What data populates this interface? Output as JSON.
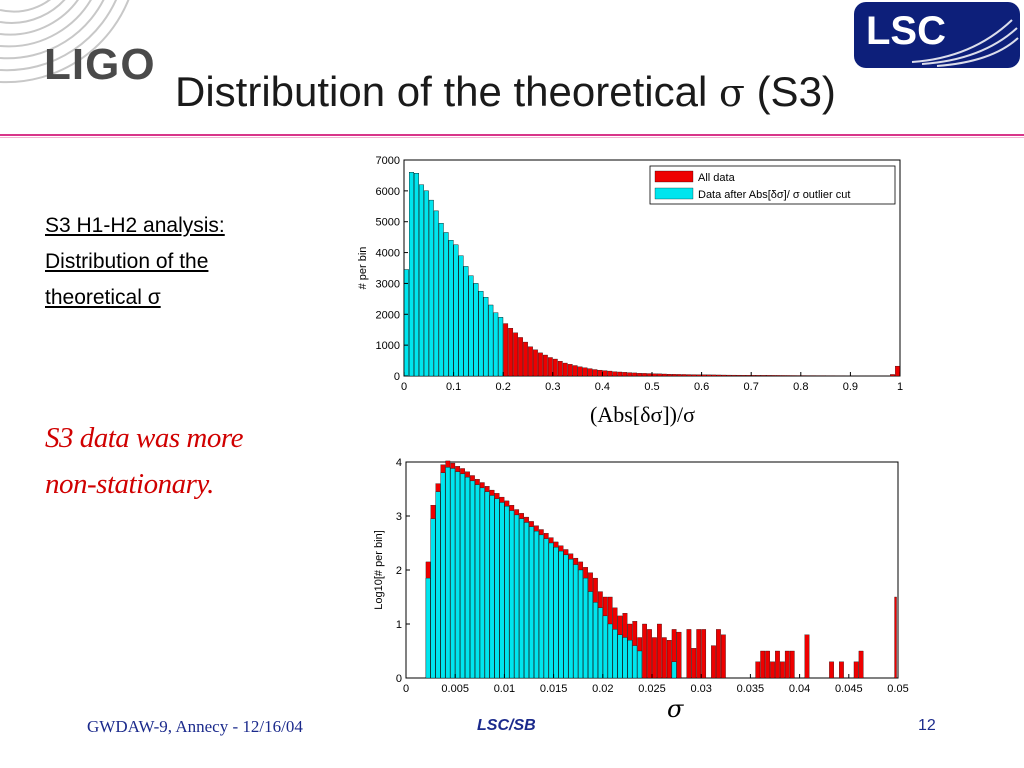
{
  "slide": {
    "title_text": "Distribution of the theoretical ",
    "title_sigma": "σ",
    "title_suffix": " (S3)",
    "left_lines": [
      "S3 H1-H2 analysis:",
      "Distribution of the",
      "theoretical σ"
    ],
    "emphasis_lines": [
      "S3 data was more",
      "non-stationary."
    ],
    "footer_left": "GWDAW-9, Annecy - 12/16/04",
    "footer_center": "LSC/SB",
    "footer_right": "12",
    "logo_left_text": "LIGO",
    "logo_right_text": "LSC",
    "top_xlabel": "(Abs[δσ])/σ",
    "bottom_xlabel": "σ"
  },
  "colors": {
    "all_data": "#ee0000",
    "after_cut": "#00e5ee",
    "rule": "#d8358a",
    "footer": "#1b2a8c"
  },
  "chart_data": [
    {
      "type": "bar",
      "overlay": true,
      "xlim": [
        0,
        1
      ],
      "ylim": [
        0,
        7000
      ],
      "xticks": [
        0,
        0.1,
        0.2,
        0.3,
        0.4,
        0.5,
        0.6,
        0.7,
        0.8,
        0.9,
        1
      ],
      "xtick_labels": [
        "0",
        "0.1",
        "0.2",
        "0.3",
        "0.4",
        "0.5",
        "0.6",
        "0.7",
        "0.8",
        "0.9",
        "1"
      ],
      "yticks": [
        0,
        1000,
        2000,
        3000,
        4000,
        5000,
        6000,
        7000
      ],
      "ytick_labels": [
        "0",
        "1000",
        "2000",
        "3000",
        "4000",
        "5000",
        "6000",
        "7000"
      ],
      "ylabel": "# per bin",
      "xlabel": "(Abs[δσ])/σ",
      "legend": [
        "All data",
        "Data after Abs[δσ]/ σ outlier cut"
      ],
      "legend_position": "top-right",
      "bin_width": 0.01,
      "series": [
        {
          "name": "All data",
          "x": [
            0.005,
            0.015,
            0.025,
            0.035,
            0.045,
            0.055,
            0.065,
            0.075,
            0.085,
            0.095,
            0.105,
            0.115,
            0.125,
            0.135,
            0.145,
            0.155,
            0.165,
            0.175,
            0.185,
            0.195,
            0.205,
            0.215,
            0.225,
            0.235,
            0.245,
            0.255,
            0.265,
            0.275,
            0.285,
            0.295,
            0.305,
            0.315,
            0.325,
            0.335,
            0.345,
            0.355,
            0.365,
            0.375,
            0.385,
            0.395,
            0.405,
            0.415,
            0.425,
            0.435,
            0.445,
            0.455,
            0.465,
            0.475,
            0.485,
            0.495,
            0.505,
            0.515,
            0.525,
            0.535,
            0.545,
            0.555,
            0.565,
            0.575,
            0.585,
            0.595,
            0.605,
            0.615,
            0.625,
            0.635,
            0.645,
            0.655,
            0.665,
            0.675,
            0.685,
            0.695,
            0.705,
            0.715,
            0.725,
            0.735,
            0.745,
            0.755,
            0.765,
            0.775,
            0.785,
            0.795,
            0.805,
            0.815,
            0.825,
            0.835,
            0.845,
            0.855,
            0.865,
            0.875,
            0.885,
            0.895,
            0.905,
            0.915,
            0.925,
            0.935,
            0.945,
            0.955,
            0.965,
            0.975,
            0.985,
            0.995
          ],
          "values": [
            3450,
            6600,
            6570,
            6200,
            6000,
            5700,
            5350,
            4950,
            4650,
            4400,
            4250,
            3900,
            3550,
            3250,
            3000,
            2750,
            2550,
            2300,
            2050,
            1900,
            1700,
            1550,
            1400,
            1250,
            1100,
            950,
            850,
            750,
            680,
            600,
            550,
            480,
            420,
            380,
            340,
            300,
            270,
            240,
            210,
            190,
            175,
            160,
            140,
            130,
            120,
            110,
            100,
            90,
            85,
            80,
            75,
            70,
            65,
            60,
            55,
            52,
            50,
            47,
            45,
            42,
            40,
            38,
            36,
            34,
            32,
            30,
            29,
            28,
            27,
            26,
            25,
            24,
            23,
            22,
            21,
            20,
            19,
            18,
            17,
            16,
            16,
            15,
            15,
            14,
            14,
            13,
            13,
            12,
            12,
            11,
            11,
            10,
            10,
            10,
            9,
            9,
            9,
            8,
            50,
            320
          ]
        },
        {
          "name": "Data after Abs[δσ]/ σ outlier cut",
          "x": [
            0.005,
            0.015,
            0.025,
            0.035,
            0.045,
            0.055,
            0.065,
            0.075,
            0.085,
            0.095,
            0.105,
            0.115,
            0.125,
            0.135,
            0.145,
            0.155,
            0.165,
            0.175,
            0.185,
            0.195
          ],
          "values": [
            3450,
            6600,
            6570,
            6200,
            6000,
            5700,
            5350,
            4950,
            4650,
            4400,
            4250,
            3900,
            3550,
            3250,
            3000,
            2750,
            2550,
            2300,
            2050,
            1900
          ]
        }
      ]
    },
    {
      "type": "bar",
      "overlay": true,
      "xlim": [
        0,
        0.05
      ],
      "ylim": [
        0,
        4
      ],
      "xticks": [
        0,
        0.005,
        0.01,
        0.015,
        0.02,
        0.025,
        0.03,
        0.035,
        0.04,
        0.045,
        0.05
      ],
      "xtick_labels": [
        "0",
        "0.005",
        "0.01",
        "0.015",
        "0.02",
        "0.025",
        "0.03",
        "0.035",
        "0.04",
        "0.045",
        "0.05"
      ],
      "yticks": [
        0,
        1,
        2,
        3,
        4
      ],
      "ytick_labels": [
        "0",
        "1",
        "2",
        "3",
        "4"
      ],
      "ylabel": "Log10[# per bin]",
      "xlabel": "σ",
      "bin_width": 0.0005,
      "series": [
        {
          "name": "All data",
          "x": [
            0.00225,
            0.00275,
            0.00325,
            0.00375,
            0.00425,
            0.00475,
            0.00525,
            0.00575,
            0.00625,
            0.00675,
            0.00725,
            0.00775,
            0.00825,
            0.00875,
            0.00925,
            0.00975,
            0.01025,
            0.01075,
            0.01125,
            0.01175,
            0.01225,
            0.01275,
            0.01325,
            0.01375,
            0.01425,
            0.01475,
            0.01525,
            0.01575,
            0.01625,
            0.01675,
            0.01725,
            0.01775,
            0.01825,
            0.01875,
            0.01925,
            0.01975,
            0.02025,
            0.02075,
            0.02125,
            0.02175,
            0.02225,
            0.02275,
            0.02325,
            0.02375,
            0.02425,
            0.02475,
            0.02525,
            0.02575,
            0.02625,
            0.02675,
            0.02725,
            0.02775,
            0.02825,
            0.02875,
            0.02925,
            0.02975,
            0.03025,
            0.03075,
            0.03125,
            0.03175,
            0.03225,
            0.03275,
            0.03325,
            0.03375,
            0.03425,
            0.03475,
            0.03525,
            0.03575,
            0.03625,
            0.03675,
            0.03725,
            0.03775,
            0.03825,
            0.03875,
            0.03925,
            0.03975,
            0.04025,
            0.04075,
            0.04125,
            0.04175,
            0.04225,
            0.04275,
            0.04325,
            0.04375,
            0.04425,
            0.04475,
            0.04525,
            0.04575,
            0.04625,
            0.04675,
            0.04725,
            0.04775,
            0.04825,
            0.04875,
            0.04925,
            0.04975
          ],
          "values": [
            2.15,
            3.2,
            3.6,
            3.95,
            4.02,
            3.98,
            3.92,
            3.88,
            3.82,
            3.75,
            3.68,
            3.62,
            3.55,
            3.48,
            3.42,
            3.35,
            3.28,
            3.2,
            3.12,
            3.05,
            2.98,
            2.9,
            2.82,
            2.75,
            2.68,
            2.6,
            2.52,
            2.45,
            2.38,
            2.3,
            2.22,
            2.15,
            2.05,
            1.95,
            1.85,
            1.6,
            1.5,
            1.5,
            1.3,
            1.15,
            1.2,
            1.0,
            1.05,
            0.75,
            1.0,
            0.9,
            0.75,
            1.0,
            0.75,
            0.7,
            0.9,
            0.85,
            0.0,
            0.9,
            0.55,
            0.9,
            0.9,
            0.0,
            0.6,
            0.9,
            0.8,
            0.0,
            0.0,
            0.0,
            0.0,
            0.0,
            0.0,
            0.3,
            0.5,
            0.5,
            0.3,
            0.5,
            0.3,
            0.5,
            0.5,
            0.0,
            0.0,
            0.8,
            0.0,
            0.0,
            0.0,
            0.0,
            0.3,
            0.0,
            0.3,
            0.0,
            0.0,
            0.3,
            0.5,
            0.0,
            0.0,
            0.0,
            0.0,
            0.0,
            0.0,
            0.0
          ],
          "extra_bars": {
            "x": [
              0.04975
            ],
            "values": [
              1.5
            ]
          }
        },
        {
          "name": "Data after Abs[δσ]/ σ outlier cut",
          "x": [
            0.00225,
            0.00275,
            0.00325,
            0.00375,
            0.00425,
            0.00475,
            0.00525,
            0.00575,
            0.00625,
            0.00675,
            0.00725,
            0.00775,
            0.00825,
            0.00875,
            0.00925,
            0.00975,
            0.01025,
            0.01075,
            0.01125,
            0.01175,
            0.01225,
            0.01275,
            0.01325,
            0.01375,
            0.01425,
            0.01475,
            0.01525,
            0.01575,
            0.01625,
            0.01675,
            0.01725,
            0.01775,
            0.01825,
            0.01875,
            0.01925,
            0.01975,
            0.02025,
            0.02075,
            0.02125,
            0.02175,
            0.02225,
            0.02275,
            0.02325,
            0.02375,
            0.02425,
            0.02475,
            0.02525,
            0.02575,
            0.02625,
            0.02675,
            0.02725,
            0.02775,
            0.02825,
            0.02875
          ],
          "values": [
            1.85,
            2.95,
            3.45,
            3.8,
            3.9,
            3.88,
            3.82,
            3.78,
            3.72,
            3.65,
            3.58,
            3.52,
            3.45,
            3.38,
            3.32,
            3.25,
            3.18,
            3.1,
            3.02,
            2.95,
            2.88,
            2.8,
            2.72,
            2.65,
            2.58,
            2.5,
            2.42,
            2.35,
            2.28,
            2.2,
            2.1,
            2.0,
            1.85,
            1.6,
            1.4,
            1.3,
            1.15,
            1.0,
            0.9,
            0.8,
            0.75,
            0.7,
            0.6,
            0.5,
            0.0,
            0.0,
            0.0,
            0.0,
            0.0,
            0.0,
            0.3,
            0.0,
            0.0,
            0.0
          ]
        }
      ]
    }
  ]
}
